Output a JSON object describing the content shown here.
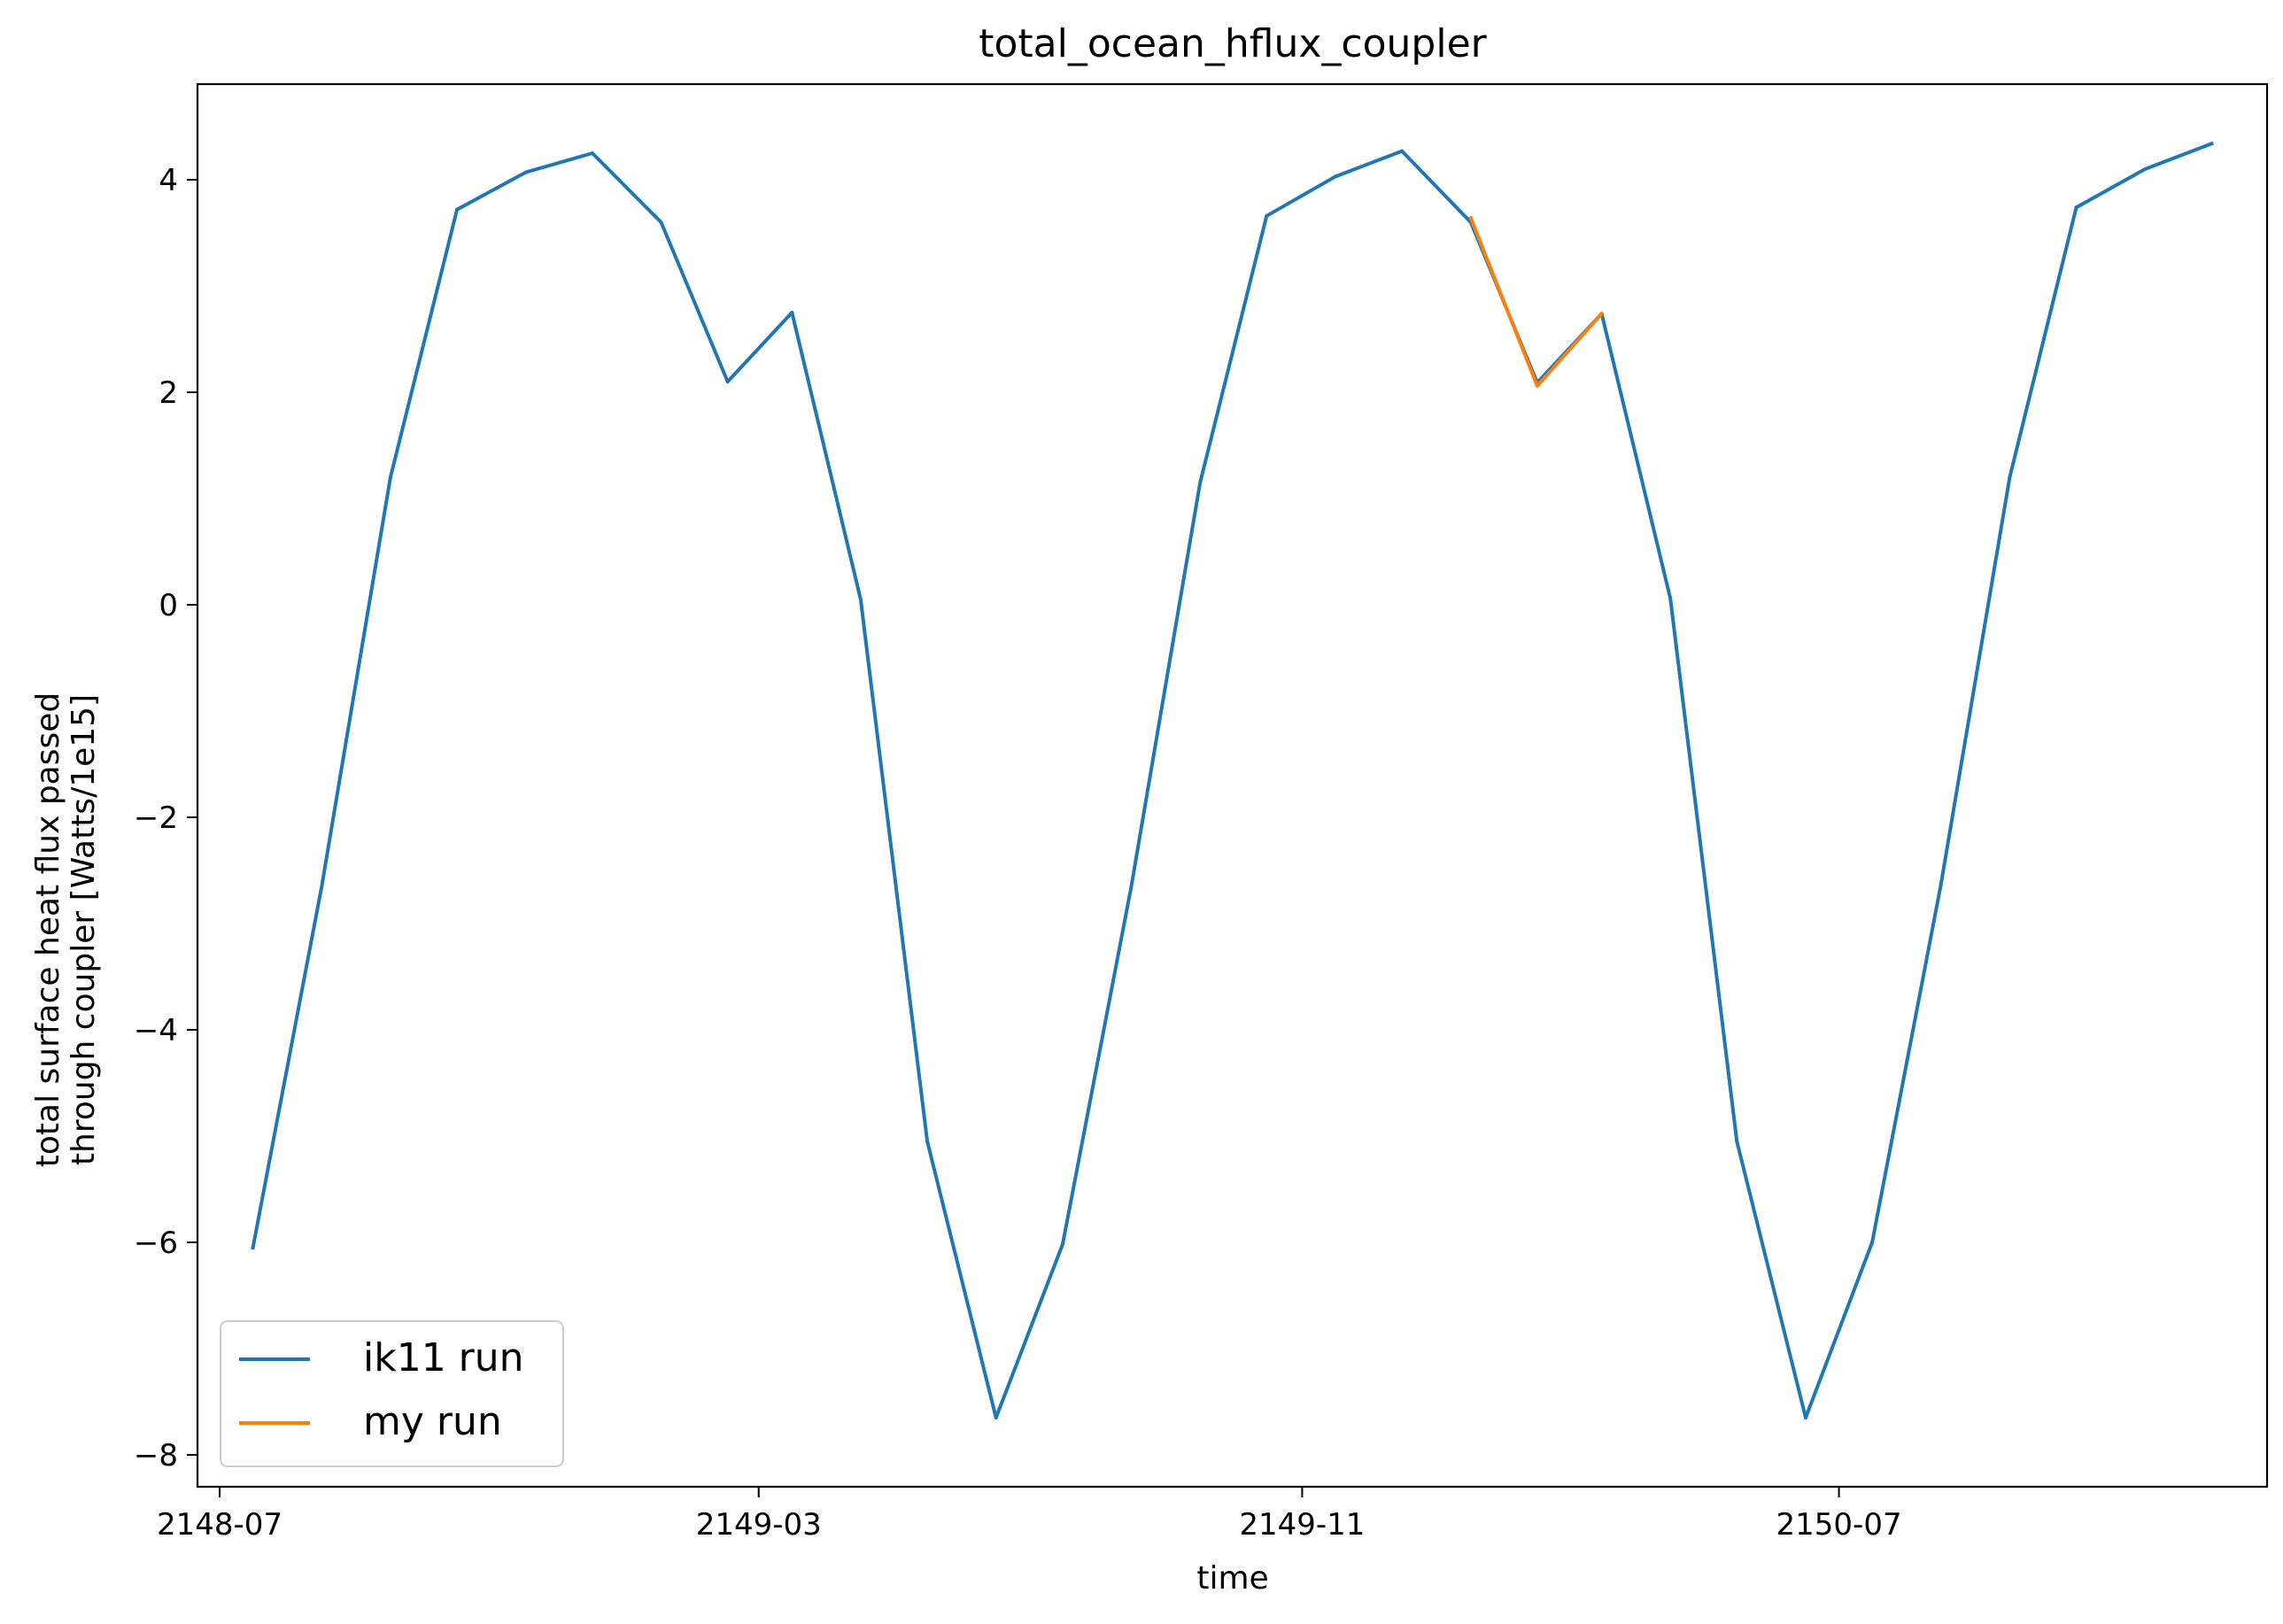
{
  "chart_data": {
    "type": "line",
    "title": "total_ocean_hflux_coupler",
    "xlabel": "time",
    "ylabel": [
      "total surface heat flux passed",
      "through coupler [Watts/1e15]"
    ],
    "x_ticks": [
      "2148-07",
      "2149-03",
      "2149-11",
      "2150-07"
    ],
    "y_ticks": [
      "4",
      "2",
      "0",
      "−2",
      "−4",
      "−6",
      "−8"
    ],
    "ylim": [
      -8.3,
      4.9
    ],
    "legend_position": "lower left",
    "series": [
      {
        "name": "ik11 run",
        "color": "#1f77b4",
        "x": [
          "2148-07-16",
          "2148-08-16",
          "2148-09-16",
          "2148-10-16",
          "2148-11-16",
          "2148-12-16",
          "2149-01-16",
          "2149-02-15",
          "2149-03-16",
          "2149-04-16",
          "2149-05-16",
          "2149-06-16",
          "2149-07-16",
          "2149-08-16",
          "2149-09-16",
          "2149-10-16",
          "2149-11-16",
          "2149-12-16",
          "2150-01-16",
          "2150-02-15",
          "2150-03-16",
          "2150-04-16",
          "2150-05-16",
          "2150-06-16",
          "2150-07-16",
          "2150-08-16",
          "2150-09-16",
          "2150-10-16",
          "2150-11-16",
          "2150-12-16"
        ],
        "y": [
          -6.05,
          -2.65,
          1.2,
          3.72,
          4.07,
          4.25,
          3.6,
          2.1,
          2.75,
          0.05,
          -5.05,
          -7.65,
          -6.02,
          -2.65,
          1.15,
          3.66,
          4.03,
          4.27,
          3.6,
          2.09,
          2.74,
          0.06,
          -5.05,
          -7.65,
          -6.0,
          -2.63,
          1.2,
          3.74,
          4.1,
          4.34
        ]
      },
      {
        "name": "my run",
        "color": "#ff7f0e",
        "x": [
          "2150-01-16",
          "2150-02-15",
          "2150-03-16"
        ],
        "y": [
          3.64,
          2.06,
          2.74
        ]
      }
    ]
  }
}
